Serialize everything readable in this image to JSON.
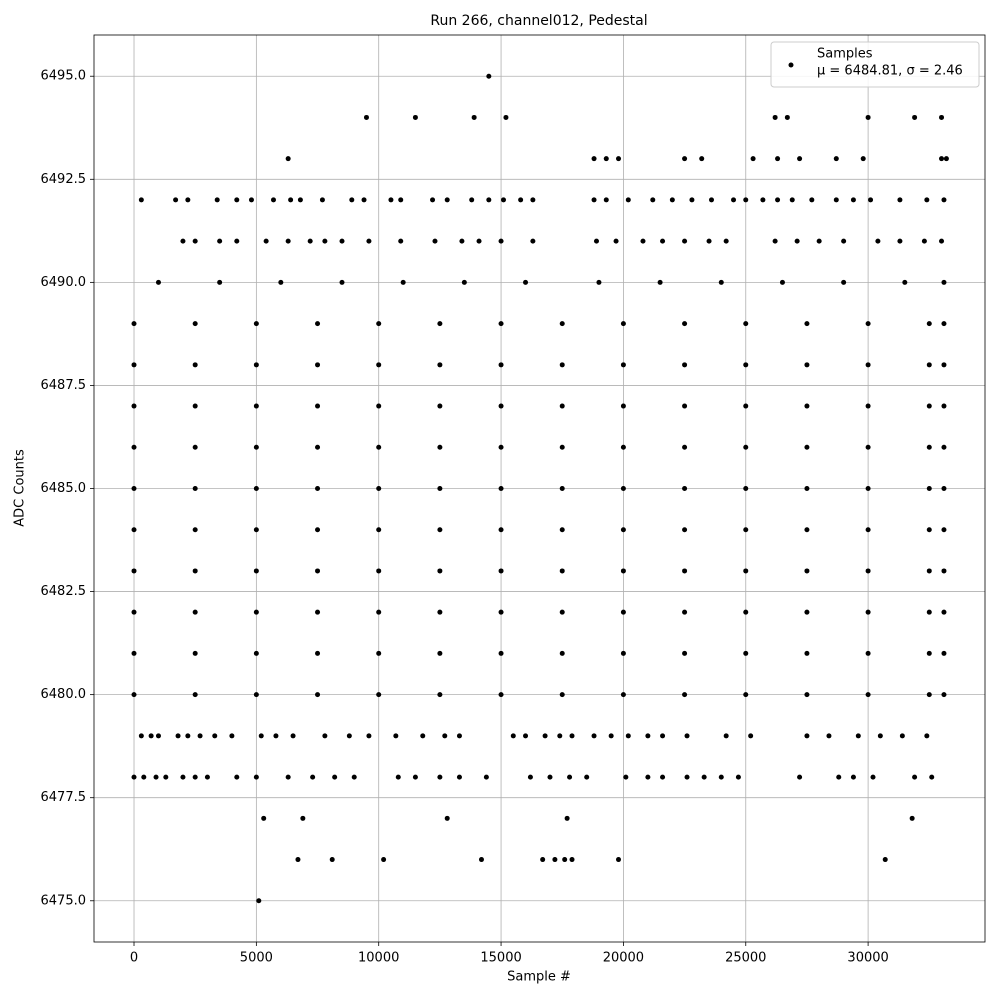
{
  "chart_data": {
    "type": "scatter",
    "title": "Run 266, channel012, Pedestal",
    "x_label": "Sample #",
    "y_label": "ADC Counts",
    "legend_stats": "μ = 6484.81, σ = 2.46",
    "legend_position": "upper right",
    "grid": true,
    "xlim": [
      -1635,
      34777
    ],
    "ylim": [
      6474.0,
      6496.0
    ],
    "xticks": [
      0,
      5000,
      10000,
      15000,
      20000,
      25000,
      30000
    ],
    "yticks": [
      {
        "value": 6475,
        "label": "6475.0"
      },
      {
        "value": 6477.5,
        "label": "6477.5"
      },
      {
        "value": 6480,
        "label": "6480.0"
      },
      {
        "value": 6482.5,
        "label": "6482.5"
      },
      {
        "value": 6485,
        "label": "6485.0"
      },
      {
        "value": 6487.5,
        "label": "6487.5"
      },
      {
        "value": 6490,
        "label": "6490.0"
      },
      {
        "value": 6492.5,
        "label": "6492.5"
      },
      {
        "value": 6495,
        "label": "6495.0"
      }
    ],
    "series": [
      {
        "name": "Samples",
        "color": "#000000",
        "x": [
          14500,
          9500,
          11500,
          13900,
          15200,
          26200,
          26700,
          30000,
          31900,
          33000,
          6300,
          18800,
          19300,
          19800,
          22500,
          23200,
          25300,
          26300,
          27200,
          28700,
          29800,
          33000,
          33200,
          300,
          1700,
          2200,
          3400,
          4200,
          4800,
          5700,
          6400,
          6800,
          7700,
          8900,
          9400,
          10500,
          10900,
          12200,
          12800,
          13800,
          14500,
          15100,
          15800,
          16300,
          18800,
          19300,
          20200,
          21200,
          22000,
          22800,
          23600,
          24500,
          25000,
          25700,
          26300,
          26900,
          27700,
          28700,
          29400,
          30100,
          31300,
          32400,
          33100,
          2000,
          2500,
          3500,
          4200,
          5400,
          6300,
          7200,
          7800,
          8500,
          9600,
          10900,
          12300,
          13400,
          14100,
          15000,
          16300,
          18900,
          19700,
          20800,
          21600,
          22500,
          23500,
          24200,
          26200,
          27100,
          28000,
          29000,
          30400,
          31300,
          32300,
          33000,
          1000,
          3500,
          6000,
          8500,
          11000,
          13500,
          16000,
          19000,
          21500,
          24000,
          26500,
          29000,
          31500,
          33100,
          0,
          2500,
          5000,
          7500,
          10000,
          12500,
          15000,
          17500,
          20000,
          22500,
          25000,
          27500,
          30000,
          32500,
          33100,
          0,
          2500,
          5000,
          7500,
          10000,
          12500,
          15000,
          17500,
          20000,
          22500,
          25000,
          27500,
          30000,
          32500,
          33100,
          0,
          2500,
          5000,
          7500,
          10000,
          12500,
          15000,
          17500,
          20000,
          22500,
          25000,
          27500,
          30000,
          32500,
          33100,
          0,
          2500,
          5000,
          7500,
          10000,
          12500,
          15000,
          17500,
          20000,
          22500,
          25000,
          27500,
          30000,
          32500,
          33100,
          0,
          2500,
          5000,
          7500,
          10000,
          12500,
          15000,
          17500,
          20000,
          22500,
          25000,
          27500,
          30000,
          32500,
          33100,
          0,
          2500,
          5000,
          7500,
          10000,
          12500,
          15000,
          17500,
          20000,
          22500,
          25000,
          27500,
          30000,
          32500,
          33100,
          0,
          2500,
          5000,
          7500,
          10000,
          12500,
          15000,
          17500,
          20000,
          22500,
          25000,
          27500,
          30000,
          32500,
          33100,
          0,
          2500,
          5000,
          7500,
          10000,
          12500,
          15000,
          17500,
          20000,
          22500,
          25000,
          27500,
          30000,
          32500,
          33100,
          0,
          2500,
          5000,
          7500,
          10000,
          12500,
          15000,
          17500,
          20000,
          22500,
          25000,
          27500,
          30000,
          32500,
          33100,
          0,
          2500,
          5000,
          7500,
          10000,
          12500,
          15000,
          17500,
          20000,
          22500,
          25000,
          27500,
          30000,
          32500,
          33100,
          300,
          700,
          1000,
          1800,
          2200,
          2700,
          3300,
          4000,
          5200,
          5800,
          6500,
          7800,
          8800,
          9600,
          10700,
          11800,
          12700,
          13300,
          15500,
          16000,
          16800,
          17400,
          17900,
          18800,
          19500,
          20200,
          21000,
          21600,
          22600,
          24200,
          25200,
          27500,
          28400,
          29600,
          30500,
          31400,
          32400,
          0,
          400,
          900,
          1300,
          2000,
          2500,
          3000,
          4200,
          5000,
          6300,
          7300,
          8200,
          9000,
          10800,
          11500,
          12500,
          13300,
          14400,
          16200,
          17000,
          17800,
          18500,
          20100,
          21000,
          21600,
          22600,
          23300,
          24000,
          24700,
          27200,
          28800,
          29400,
          30200,
          31900,
          32600,
          5300,
          6900,
          12800,
          17700,
          31800,
          6700,
          8100,
          10200,
          14200,
          16700,
          17200,
          17600,
          17900,
          19800,
          30700,
          5100
        ],
        "values": [
          6495,
          6494,
          6494,
          6494,
          6494,
          6494,
          6494,
          6494,
          6494,
          6494,
          6493,
          6493,
          6493,
          6493,
          6493,
          6493,
          6493,
          6493,
          6493,
          6493,
          6493,
          6493,
          6493,
          6492,
          6492,
          6492,
          6492,
          6492,
          6492,
          6492,
          6492,
          6492,
          6492,
          6492,
          6492,
          6492,
          6492,
          6492,
          6492,
          6492,
          6492,
          6492,
          6492,
          6492,
          6492,
          6492,
          6492,
          6492,
          6492,
          6492,
          6492,
          6492,
          6492,
          6492,
          6492,
          6492,
          6492,
          6492,
          6492,
          6492,
          6492,
          6492,
          6492,
          6491,
          6491,
          6491,
          6491,
          6491,
          6491,
          6491,
          6491,
          6491,
          6491,
          6491,
          6491,
          6491,
          6491,
          6491,
          6491,
          6491,
          6491,
          6491,
          6491,
          6491,
          6491,
          6491,
          6491,
          6491,
          6491,
          6491,
          6491,
          6491,
          6491,
          6491,
          6490,
          6490,
          6490,
          6490,
          6490,
          6490,
          6490,
          6490,
          6490,
          6490,
          6490,
          6490,
          6490,
          6490,
          6489,
          6489,
          6489,
          6489,
          6489,
          6489,
          6489,
          6489,
          6489,
          6489,
          6489,
          6489,
          6489,
          6489,
          6489,
          6488,
          6488,
          6488,
          6488,
          6488,
          6488,
          6488,
          6488,
          6488,
          6488,
          6488,
          6488,
          6488,
          6488,
          6488,
          6487,
          6487,
          6487,
          6487,
          6487,
          6487,
          6487,
          6487,
          6487,
          6487,
          6487,
          6487,
          6487,
          6487,
          6487,
          6486,
          6486,
          6486,
          6486,
          6486,
          6486,
          6486,
          6486,
          6486,
          6486,
          6486,
          6486,
          6486,
          6486,
          6486,
          6485,
          6485,
          6485,
          6485,
          6485,
          6485,
          6485,
          6485,
          6485,
          6485,
          6485,
          6485,
          6485,
          6485,
          6485,
          6484,
          6484,
          6484,
          6484,
          6484,
          6484,
          6484,
          6484,
          6484,
          6484,
          6484,
          6484,
          6484,
          6484,
          6484,
          6483,
          6483,
          6483,
          6483,
          6483,
          6483,
          6483,
          6483,
          6483,
          6483,
          6483,
          6483,
          6483,
          6483,
          6483,
          6482,
          6482,
          6482,
          6482,
          6482,
          6482,
          6482,
          6482,
          6482,
          6482,
          6482,
          6482,
          6482,
          6482,
          6482,
          6481,
          6481,
          6481,
          6481,
          6481,
          6481,
          6481,
          6481,
          6481,
          6481,
          6481,
          6481,
          6481,
          6481,
          6481,
          6480,
          6480,
          6480,
          6480,
          6480,
          6480,
          6480,
          6480,
          6480,
          6480,
          6480,
          6480,
          6480,
          6480,
          6480,
          6479,
          6479,
          6479,
          6479,
          6479,
          6479,
          6479,
          6479,
          6479,
          6479,
          6479,
          6479,
          6479,
          6479,
          6479,
          6479,
          6479,
          6479,
          6479,
          6479,
          6479,
          6479,
          6479,
          6479,
          6479,
          6479,
          6479,
          6479,
          6479,
          6479,
          6479,
          6479,
          6479,
          6479,
          6479,
          6479,
          6479,
          6478,
          6478,
          6478,
          6478,
          6478,
          6478,
          6478,
          6478,
          6478,
          6478,
          6478,
          6478,
          6478,
          6478,
          6478,
          6478,
          6478,
          6478,
          6478,
          6478,
          6478,
          6478,
          6478,
          6478,
          6478,
          6478,
          6478,
          6478,
          6478,
          6478,
          6478,
          6478,
          6478,
          6478,
          6478,
          6477,
          6477,
          6477,
          6477,
          6477,
          6476,
          6476,
          6476,
          6476,
          6476,
          6476,
          6476,
          6476,
          6476,
          6476,
          6475
        ]
      }
    ]
  }
}
